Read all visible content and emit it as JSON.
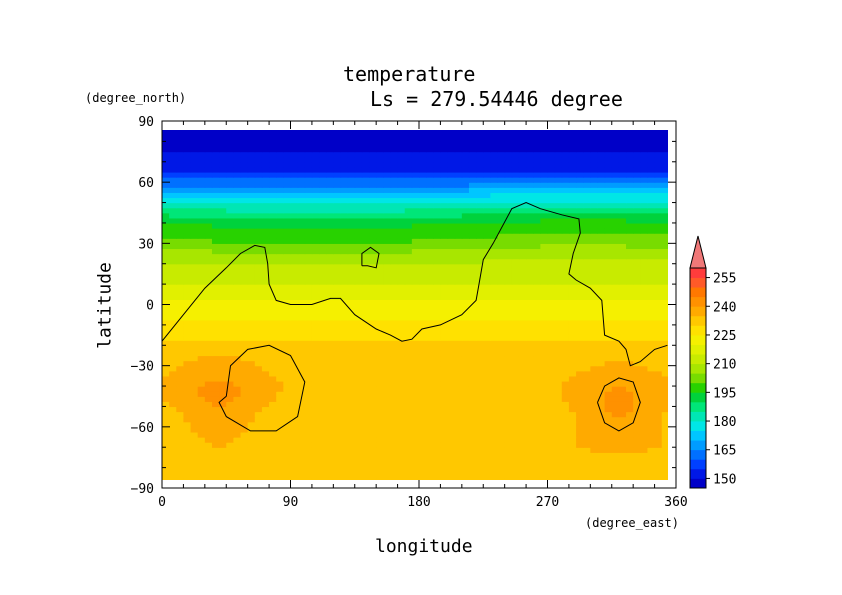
{
  "chart_data": {
    "type": "heatmap",
    "title": "temperature",
    "subtitle": "Ls = 279.54446 degree",
    "xlabel": "longitude",
    "ylabel": "latitude",
    "x_units": "(degree_east)",
    "y_units": "(degree_north)",
    "xlim": [
      0,
      360
    ],
    "ylim": [
      -90,
      90
    ],
    "x_ticks": [
      "0",
      "90",
      "180",
      "270",
      "360"
    ],
    "y_ticks": [
      "90",
      "60",
      "30",
      "0",
      "−30",
      "−60",
      "−90"
    ],
    "x_tick_values": [
      0,
      90,
      180,
      270,
      360
    ],
    "y_tick_values": [
      90,
      60,
      30,
      0,
      -30,
      -60,
      -90
    ],
    "colorbar": {
      "levels": [
        145,
        150,
        155,
        160,
        165,
        170,
        175,
        180,
        185,
        190,
        195,
        200,
        205,
        210,
        215,
        220,
        225,
        230,
        235,
        240,
        245,
        250,
        255,
        260
      ],
      "colors": [
        "#0000c8",
        "#0018e6",
        "#0040ff",
        "#0070ff",
        "#009cff",
        "#00c6ff",
        "#00e6e6",
        "#00e6b4",
        "#00e678",
        "#00d23c",
        "#28d200",
        "#78dc00",
        "#a8e600",
        "#c8eb00",
        "#e1f000",
        "#f5f000",
        "#ffe100",
        "#ffc800",
        "#ffaa00",
        "#ff9100",
        "#ff7800",
        "#ff5a28",
        "#ff3c3c",
        "#f07878"
      ],
      "labels": [
        "150",
        "165",
        "180",
        "195",
        "210",
        "225",
        "240",
        "255"
      ],
      "label_values": [
        150,
        165,
        180,
        195,
        210,
        225,
        240,
        255
      ],
      "over_color": "#f07878"
    },
    "latitude_profile": [
      {
        "lat": 85,
        "value": 148
      },
      {
        "lat": 75,
        "value": 150
      },
      {
        "lat": 65,
        "value": 155
      },
      {
        "lat": 60,
        "value": 162
      },
      {
        "lat": 55,
        "value": 172
      },
      {
        "lat": 50,
        "value": 180
      },
      {
        "lat": 45,
        "value": 188
      },
      {
        "lat": 40,
        "value": 195
      },
      {
        "lat": 32,
        "value": 200
      },
      {
        "lat": 25,
        "value": 207
      },
      {
        "lat": 15,
        "value": 213
      },
      {
        "lat": 5,
        "value": 218
      },
      {
        "lat": -5,
        "value": 224
      },
      {
        "lat": -15,
        "value": 229
      },
      {
        "lat": -25,
        "value": 233
      },
      {
        "lat": -40,
        "value": 234
      },
      {
        "lat": -55,
        "value": 232
      },
      {
        "lat": -70,
        "value": 234
      },
      {
        "lat": -85,
        "value": 231
      }
    ],
    "warm_spots": [
      {
        "lon": 40,
        "lat": -45,
        "value": 241
      },
      {
        "lon": 320,
        "lat": -50,
        "value": 241
      }
    ],
    "contours": [
      {
        "points": [
          [
            0,
            -18
          ],
          [
            15,
            -5
          ],
          [
            30,
            8
          ],
          [
            45,
            18
          ],
          [
            55,
            25
          ],
          [
            65,
            29
          ],
          [
            72,
            28
          ],
          [
            74,
            20
          ],
          [
            75,
            10
          ],
          [
            80,
            2
          ],
          [
            90,
            0
          ],
          [
            105,
            0
          ],
          [
            118,
            3
          ],
          [
            125,
            3
          ],
          [
            135,
            -5
          ],
          [
            150,
            -12
          ],
          [
            160,
            -15
          ],
          [
            168,
            -18
          ],
          [
            175,
            -17
          ],
          [
            182,
            -12
          ],
          [
            195,
            -10
          ],
          [
            210,
            -5
          ],
          [
            220,
            2
          ],
          [
            222,
            10
          ],
          [
            225,
            22
          ],
          [
            232,
            30
          ],
          [
            245,
            47
          ],
          [
            255,
            50
          ],
          [
            265,
            47
          ],
          [
            280,
            44
          ],
          [
            292,
            42
          ],
          [
            293,
            35
          ],
          [
            288,
            25
          ],
          [
            285,
            15
          ],
          [
            290,
            12
          ],
          [
            300,
            8
          ],
          [
            308,
            2
          ],
          [
            310,
            -15
          ],
          [
            320,
            -18
          ],
          [
            325,
            -22
          ],
          [
            328,
            -30
          ],
          [
            335,
            -28
          ],
          [
            345,
            -22
          ],
          [
            354,
            -20
          ]
        ]
      },
      {
        "points": [
          [
            140,
            19
          ],
          [
            140,
            25
          ],
          [
            146,
            28
          ],
          [
            152,
            25
          ],
          [
            150,
            18
          ],
          [
            144,
            19
          ],
          [
            140,
            19
          ]
        ]
      },
      {
        "points": [
          [
            45,
            -45
          ],
          [
            48,
            -30
          ],
          [
            60,
            -22
          ],
          [
            75,
            -20
          ],
          [
            90,
            -25
          ],
          [
            100,
            -38
          ],
          [
            95,
            -55
          ],
          [
            80,
            -62
          ],
          [
            62,
            -62
          ],
          [
            45,
            -55
          ],
          [
            40,
            -48
          ],
          [
            45,
            -45
          ]
        ]
      },
      {
        "points": [
          [
            305,
            -48
          ],
          [
            310,
            -40
          ],
          [
            320,
            -36
          ],
          [
            330,
            -38
          ],
          [
            335,
            -48
          ],
          [
            330,
            -58
          ],
          [
            320,
            -62
          ],
          [
            310,
            -58
          ],
          [
            305,
            -48
          ]
        ]
      }
    ]
  }
}
